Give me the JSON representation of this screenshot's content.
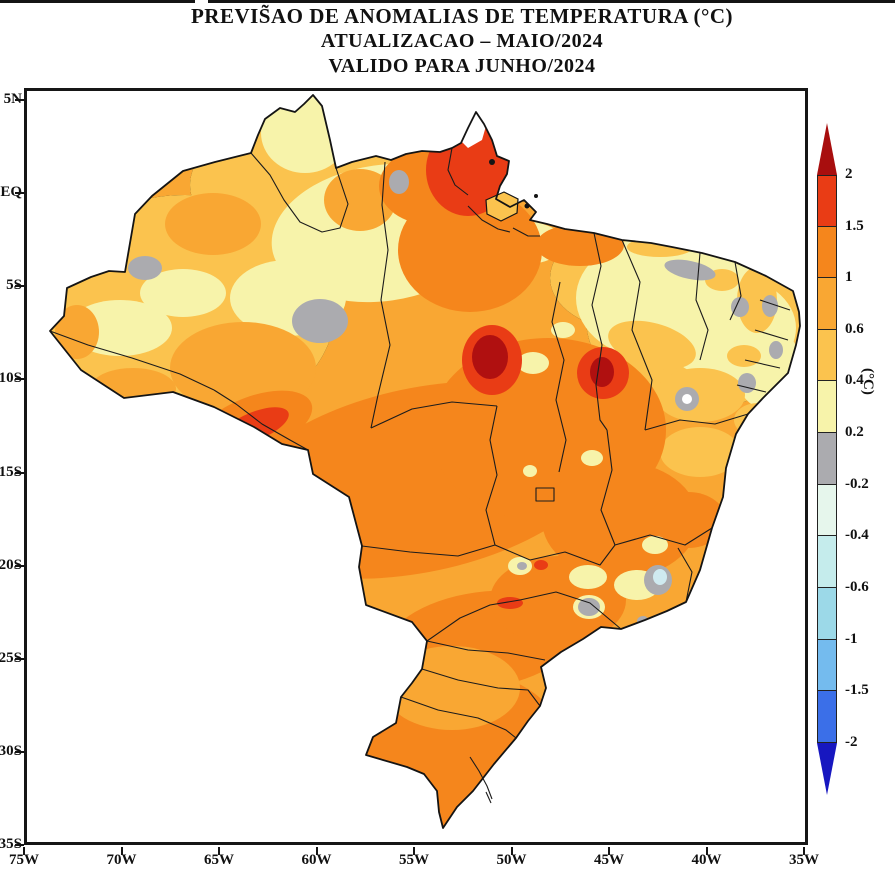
{
  "title": {
    "line1": "PREVIS̃AO DE ANOMALIAS DE TEMPERATURA (°C)",
    "line2": "ATUALIZACAO – MAIO/2024",
    "line3": "VALIDO PARA JUNHO/2024"
  },
  "axes": {
    "y_tick_labels": [
      "5N",
      "EQ",
      "5S",
      "10S",
      "15S",
      "20S",
      "25S",
      "30S",
      "35S"
    ],
    "x_tick_labels": [
      "75W",
      "70W",
      "65W",
      "60W",
      "55W",
      "50W",
      "45W",
      "40W",
      "35W"
    ]
  },
  "colorbar": {
    "unit_label": "(°C)",
    "tick_labels": [
      "2",
      "1.5",
      "1",
      "0.6",
      "0.4",
      "0.2",
      "-0.2",
      "-0.4",
      "-0.6",
      "-1",
      "-1.5",
      "-2"
    ],
    "band_colors_top_to_bottom": [
      "#E93C15",
      "#F5861C",
      "#F9A733",
      "#FBC34E",
      "#F7F3AA",
      "#ABABAF",
      "#E6F6EC",
      "#C5ECEC",
      "#9CD9E8",
      "#74BBEE",
      "#3B6FE8"
    ],
    "arrow_up_color": "#A80E0E",
    "arrow_down_color": "#1717C0"
  },
  "map": {
    "region_label": "Brazil",
    "palette": {
      "dred": "#B01010",
      "rorange": "#E93C15",
      "sorange": "#F5861C",
      "morange": "#F9A733",
      "amber": "#FBC34E",
      "pyellow": "#F7F3AA",
      "gray": "#ABABAF",
      "pcyan": "#CFEAF0",
      "outline": "#141414"
    }
  },
  "chart_data": {
    "type": "heatmap",
    "title": "PREVIS̃AO DE ANOMALIAS DE TEMPERATURA (°C)",
    "subtitle_update": "ATUALIZACAO – MAIO/2024",
    "subtitle_valid": "VALIDO PARA JUNHO/2024",
    "unit": "°C",
    "x_axis": {
      "label_type": "longitude",
      "ticks": [
        "75W",
        "70W",
        "65W",
        "60W",
        "55W",
        "50W",
        "45W",
        "40W",
        "35W"
      ]
    },
    "y_axis": {
      "label_type": "latitude",
      "ticks": [
        "5N",
        "EQ",
        "5S",
        "10S",
        "15S",
        "20S",
        "25S",
        "30S",
        "35S"
      ]
    },
    "colorscale_levels_c": [
      2,
      1.5,
      1,
      0.6,
      0.4,
      0.2,
      -0.2,
      -0.4,
      -0.6,
      -1,
      -1.5,
      -2
    ],
    "readings": [
      {
        "area": "central and southern Brazil (wide band)",
        "anomaly_c": "+1 to +1.5"
      },
      {
        "area": "Amapa region, far north",
        "anomaly_c": "+1.5 to +2"
      },
      {
        "area": "central Para hotspot (~52W, 9S)",
        "anomaly_c": "above +2"
      },
      {
        "area": "southern Maranhao hotspot (~46W, 9.5S)",
        "anomaly_c": "above +2"
      },
      {
        "area": "western Amazonas",
        "anomaly_c": "+0.4 to +0.6"
      },
      {
        "area": "north-central band and northeast interior",
        "anomaly_c": "+0.2 to +0.4"
      },
      {
        "area": "scattered spots on NE coast, SE coast and Amazonas",
        "anomaly_c": "-0.2 to +0.2 (near neutral)"
      },
      {
        "area": "small coastal spot near Espirito Santo (~40.5W, 20S)",
        "anomaly_c": "-0.2 to -0.6"
      }
    ]
  }
}
